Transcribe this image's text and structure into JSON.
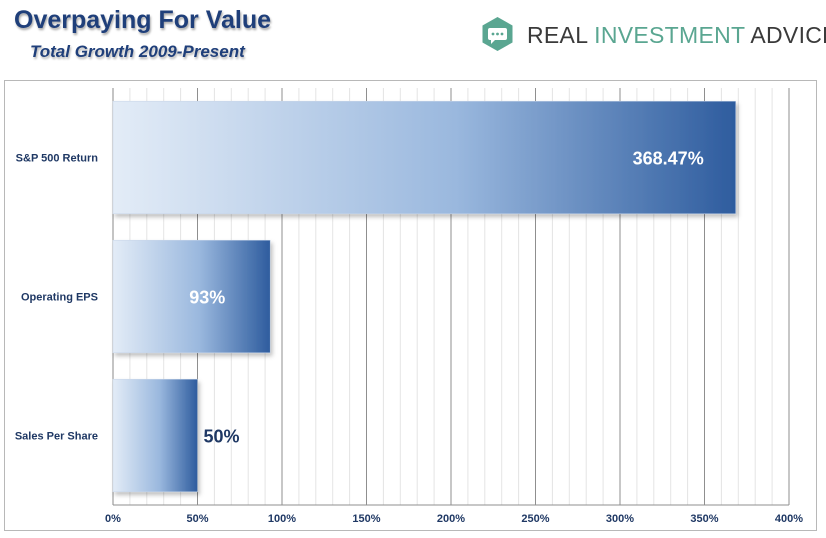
{
  "header": {
    "title": "Overpaying For Value",
    "subtitle": "Total Growth 2009-Present"
  },
  "logo": {
    "text_primary": "REAL ",
    "text_accent": "INVESTMENT",
    "text_secondary": " ADVICE",
    "icon": "chat-bubble-icon",
    "accent_color": "#5aa691"
  },
  "chart_data": {
    "type": "bar",
    "orientation": "horizontal",
    "categories": [
      "S&P 500 Return",
      "Operating EPS",
      "Sales Per Share"
    ],
    "values": [
      368.47,
      93,
      50
    ],
    "data_labels": [
      "368.47%",
      "93%",
      "50%"
    ],
    "xlim": [
      0,
      400
    ],
    "x_ticks": [
      "0%",
      "50%",
      "100%",
      "150%",
      "200%",
      "250%",
      "300%",
      "350%",
      "400%"
    ],
    "grid": true,
    "colors": {
      "bar_light": "#dde8f5",
      "bar_dark": "#2e5c9e",
      "label_dark": "#1f3864"
    }
  }
}
